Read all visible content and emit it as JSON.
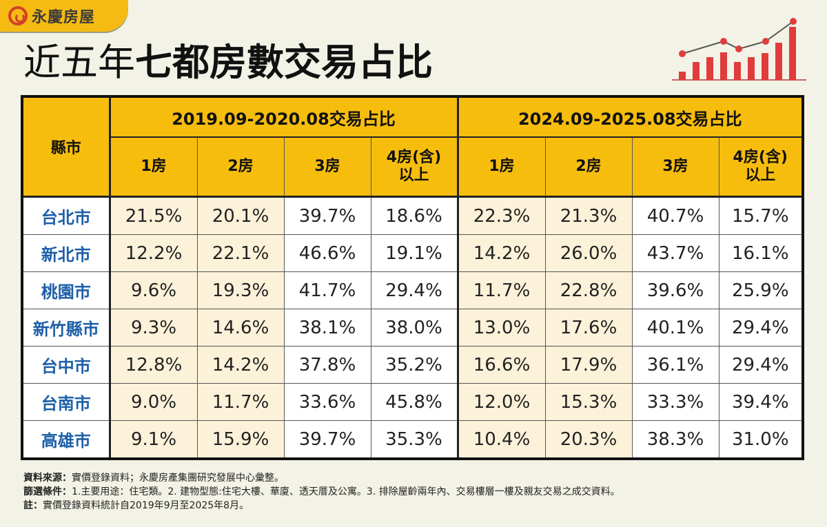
{
  "brand": {
    "name": "永慶房屋"
  },
  "title": {
    "light": "近五年",
    "bold": "七都房數交易占比"
  },
  "colors": {
    "header": "#f7bd0d",
    "city_text": "#1d5fa8",
    "cream_cell": "#fcf2d9",
    "accent_red": "#e03c3c"
  },
  "decoration_icon": "bar-line-growth-chart-icon",
  "chart_data": {
    "type": "table",
    "title": "近五年七都房數交易占比",
    "row_header": "縣市",
    "periods": [
      "2019.09-2020.08交易占比",
      "2024.09-2025.08交易占比"
    ],
    "room_types": [
      "1房",
      "2房",
      "3房",
      "4房(含)\n以上"
    ],
    "rows": [
      {
        "city": "台北市",
        "values": [
          "21.5%",
          "20.1%",
          "39.7%",
          "18.6%",
          "22.3%",
          "21.3%",
          "40.7%",
          "15.7%"
        ]
      },
      {
        "city": "新北市",
        "values": [
          "12.2%",
          "22.1%",
          "46.6%",
          "19.1%",
          "14.2%",
          "26.0%",
          "43.7%",
          "16.1%"
        ]
      },
      {
        "city": "桃園市",
        "values": [
          "9.6%",
          "19.3%",
          "41.7%",
          "29.4%",
          "11.7%",
          "22.8%",
          "39.6%",
          "25.9%"
        ]
      },
      {
        "city": "新竹縣市",
        "values": [
          "9.3%",
          "14.6%",
          "38.1%",
          "38.0%",
          "13.0%",
          "17.6%",
          "40.1%",
          "29.4%"
        ]
      },
      {
        "city": "台中市",
        "values": [
          "12.8%",
          "14.2%",
          "37.8%",
          "35.2%",
          "16.6%",
          "17.9%",
          "36.1%",
          "29.4%"
        ]
      },
      {
        "city": "台南市",
        "values": [
          "9.0%",
          "11.7%",
          "33.6%",
          "45.8%",
          "12.0%",
          "15.3%",
          "33.3%",
          "39.4%"
        ]
      },
      {
        "city": "高雄市",
        "values": [
          "9.1%",
          "15.9%",
          "39.7%",
          "35.3%",
          "10.4%",
          "20.3%",
          "38.3%",
          "31.0%"
        ]
      }
    ]
  },
  "notes": [
    {
      "label": "資料來源：",
      "text": "實價登錄資料；永慶房產集團研究發展中心彙整。"
    },
    {
      "label": "篩選條件：",
      "text": "1.主要用途：住宅類。2. 建物型態:住宅大樓、華廈、透天厝及公寓。3. 排除屋齡兩年內、交易樓層一樓及親友交易之成交資料。"
    },
    {
      "label": "註：",
      "text": "實價登錄資料統計自2019年9月至2025年8月。"
    }
  ]
}
